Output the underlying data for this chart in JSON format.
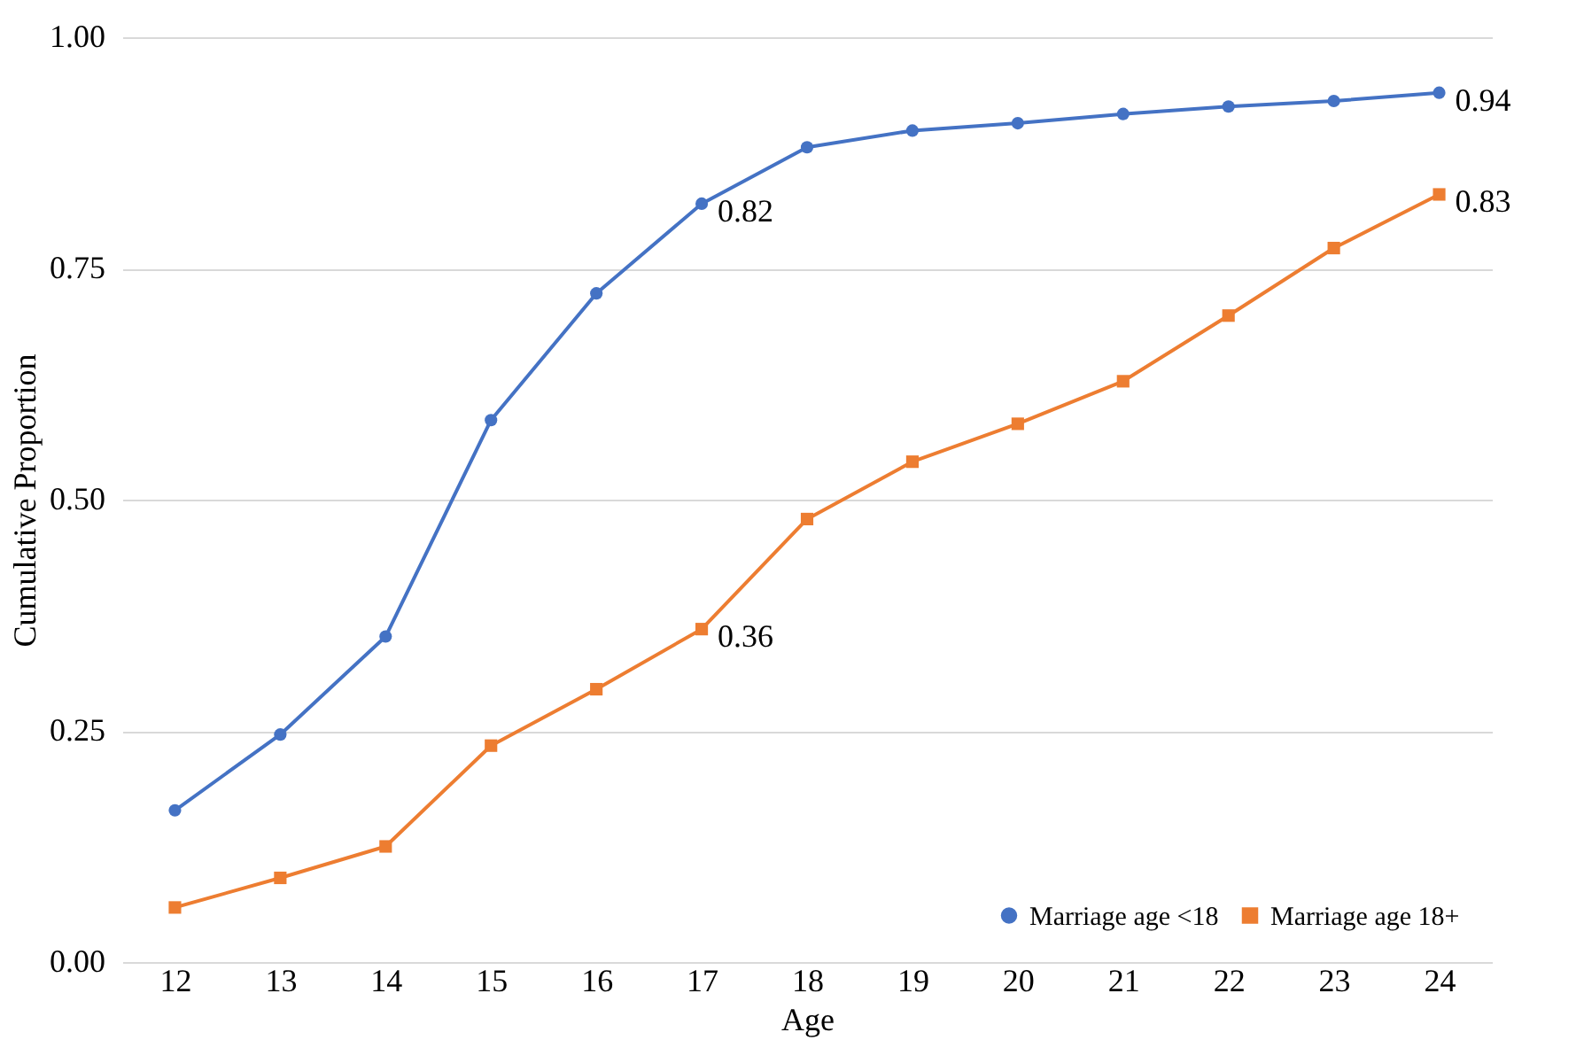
{
  "chart_data": {
    "type": "line",
    "xlabel": "Age",
    "ylabel": "Cumulative Proportion",
    "categories": [
      "12",
      "13",
      "14",
      "15",
      "16",
      "17",
      "18",
      "19",
      "20",
      "21",
      "22",
      "23",
      "24"
    ],
    "series": [
      {
        "name": "Marriage age <18",
        "color": "#4472c4",
        "marker": "circle",
        "values": [
          0.164,
          0.246,
          0.352,
          0.586,
          0.723,
          0.82,
          0.881,
          0.899,
          0.907,
          0.917,
          0.925,
          0.931,
          0.94
        ],
        "value_labels": [
          null,
          null,
          null,
          null,
          null,
          "0.82",
          null,
          null,
          null,
          null,
          null,
          null,
          "0.94"
        ]
      },
      {
        "name": "Marriage age 18+",
        "color": "#ed7d31",
        "marker": "square",
        "values": [
          0.059,
          0.091,
          0.125,
          0.234,
          0.295,
          0.36,
          0.479,
          0.541,
          0.582,
          0.628,
          0.699,
          0.772,
          0.83
        ],
        "value_labels": [
          null,
          null,
          null,
          null,
          null,
          "0.36",
          null,
          null,
          null,
          null,
          null,
          null,
          "0.83"
        ]
      }
    ],
    "ylim": [
      0,
      1
    ],
    "yticks": [
      {
        "value": 0,
        "label": "0.00"
      },
      {
        "value": 0.25,
        "label": "0.25"
      },
      {
        "value": 0.5,
        "label": "0.50"
      },
      {
        "value": 0.75,
        "label": "0.75"
      },
      {
        "value": 1,
        "label": "1.00"
      }
    ],
    "grid": "y",
    "legend": "bottom right",
    "line_style": "solid"
  }
}
